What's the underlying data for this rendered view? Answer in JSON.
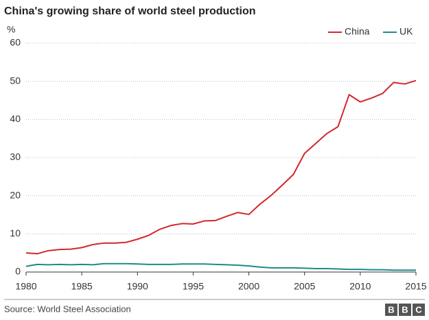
{
  "chart_data": {
    "type": "line",
    "title": "China's growing share of world steel production",
    "y_label": "%",
    "source": "Source: World Steel Association",
    "logo": [
      "B",
      "B",
      "C"
    ],
    "x": [
      1980,
      1981,
      1982,
      1983,
      1984,
      1985,
      1986,
      1987,
      1988,
      1989,
      1990,
      1991,
      1992,
      1993,
      1994,
      1995,
      1996,
      1997,
      1998,
      1999,
      2000,
      2001,
      2002,
      2003,
      2004,
      2005,
      2006,
      2007,
      2008,
      2009,
      2010,
      2011,
      2012,
      2013,
      2014,
      2015
    ],
    "series": [
      {
        "name": "China",
        "color": "#d1272a",
        "values": [
          5.0,
          4.8,
          5.6,
          5.9,
          6.0,
          6.4,
          7.2,
          7.6,
          7.6,
          7.8,
          8.6,
          9.6,
          11.2,
          12.2,
          12.7,
          12.6,
          13.4,
          13.5,
          14.6,
          15.6,
          15.1,
          17.8,
          20.1,
          22.8,
          25.6,
          31.1,
          33.7,
          36.3,
          38.1,
          46.5,
          44.6,
          45.6,
          46.8,
          49.7,
          49.3,
          50.2
        ]
      },
      {
        "name": "UK",
        "color": "#1e8a8a",
        "values": [
          1.5,
          2.0,
          1.9,
          2.0,
          1.9,
          2.0,
          1.9,
          2.2,
          2.2,
          2.2,
          2.1,
          2.0,
          2.0,
          2.0,
          2.1,
          2.1,
          2.1,
          2.0,
          1.9,
          1.8,
          1.6,
          1.3,
          1.1,
          1.1,
          1.1,
          1.0,
          0.9,
          0.9,
          0.8,
          0.7,
          0.7,
          0.6,
          0.6,
          0.5,
          0.5,
          0.5
        ]
      }
    ],
    "xlim": [
      1980,
      2015
    ],
    "xticks": [
      1980,
      1985,
      1990,
      1995,
      2000,
      2005,
      2010,
      2015
    ],
    "ylim": [
      0,
      60
    ],
    "yticks": [
      0,
      10,
      20,
      30,
      40,
      50,
      60
    ],
    "grid": true,
    "legend": "top-right"
  }
}
